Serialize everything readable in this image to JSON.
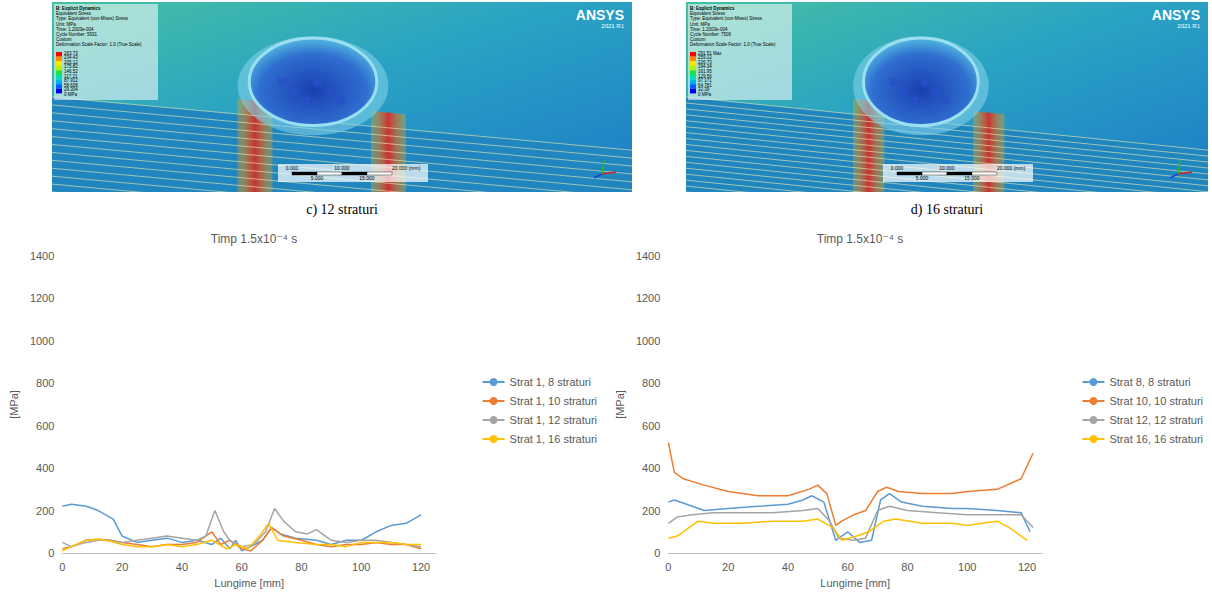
{
  "figure": {
    "panels": [
      {
        "caption": "c) 12 straturi",
        "logo": "ANSYS",
        "version": "2021 R1",
        "legend_lines": [
          "B: Explicit Dynamics",
          "Equivalent Stress",
          "Type: Equivalent (von-Mises) Stress",
          "Unit: MPa",
          "Time: 1.2003e-004",
          "Cycle Number: 5931",
          "Custom",
          "Deformation Scale Factor: 1.0 (True Scale)"
        ],
        "legend_values": [
          "263.73",
          "234.43",
          "205.12",
          "175.82",
          "146.52",
          "117.21",
          "87.912",
          "58.608",
          "29.304",
          "0 MPa"
        ],
        "scale_bar": [
          "0.000",
          "5.000",
          "10.000",
          "15.000",
          "20.000 (mm)"
        ]
      },
      {
        "caption": "d) 16 straturi",
        "logo": "ANSYS",
        "version": "2021 R1",
        "legend_lines": [
          "B: Explicit Dynamics",
          "Equivalent Stress",
          "Type: Equivalent (von-Mises) Stress",
          "Unit: MPa",
          "Time: 1.2003e-004",
          "Cycle Number: 7506",
          "Custom",
          "Deformation Scale Factor: 1.0 (True Scale)"
        ],
        "legend_values": [
          "291.51 Max",
          "259.12",
          "226.73",
          "194.34",
          "161.95",
          "129.56",
          "97.171",
          "64.781",
          "32.39",
          "0 MPa"
        ],
        "scale_bar": [
          "0.000",
          "5.000",
          "10.000",
          "15.000",
          "20.000 (mm)"
        ]
      }
    ]
  },
  "chart_data": [
    {
      "type": "line",
      "title": "Timp 1.5x10⁻⁴ s",
      "x_label": "Lungime [mm]",
      "y_label": "[MPa]",
      "xlim": [
        0,
        125
      ],
      "xticks": [
        0,
        20,
        40,
        60,
        80,
        100,
        120
      ],
      "ylim": [
        0,
        1400
      ],
      "yticks": [
        0,
        200,
        400,
        600,
        800,
        1000,
        1200,
        1400
      ],
      "grid": false,
      "legend": "right",
      "series": [
        {
          "name": "Strat 1, 8 straturi",
          "color": "#5b9bd5",
          "x": [
            0,
            3,
            8,
            12,
            17,
            20,
            25,
            30,
            35,
            40,
            45,
            50,
            53,
            56,
            58,
            60,
            63,
            67,
            70,
            73,
            78,
            85,
            90,
            95,
            100,
            105,
            110,
            115,
            120
          ],
          "values": [
            220,
            230,
            220,
            200,
            160,
            80,
            50,
            60,
            70,
            50,
            60,
            40,
            70,
            20,
            60,
            10,
            30,
            60,
            120,
            90,
            70,
            60,
            40,
            60,
            60,
            100,
            130,
            140,
            180
          ]
        },
        {
          "name": "Strat 1, 10 straturi",
          "color": "#ed7d31",
          "x": [
            0,
            3,
            8,
            12,
            16,
            20,
            25,
            30,
            35,
            40,
            45,
            50,
            53,
            56,
            60,
            63,
            67,
            70,
            74,
            80,
            85,
            90,
            95,
            100,
            105,
            110,
            115,
            120
          ],
          "values": [
            20,
            30,
            60,
            65,
            60,
            50,
            40,
            30,
            40,
            40,
            50,
            100,
            40,
            60,
            20,
            10,
            60,
            120,
            80,
            60,
            40,
            30,
            40,
            40,
            50,
            40,
            40,
            20
          ]
        },
        {
          "name": "Strat 1, 12 straturi",
          "color": "#a5a5a5",
          "x": [
            0,
            3,
            8,
            12,
            16,
            20,
            25,
            30,
            35,
            40,
            45,
            48,
            51,
            54,
            56,
            60,
            64,
            68,
            71,
            74,
            78,
            82,
            85,
            90,
            95,
            100,
            105,
            110,
            115,
            120
          ],
          "values": [
            50,
            30,
            50,
            60,
            60,
            50,
            60,
            70,
            80,
            70,
            60,
            80,
            200,
            100,
            60,
            30,
            40,
            100,
            210,
            150,
            100,
            90,
            110,
            60,
            50,
            60,
            60,
            50,
            40,
            30
          ]
        },
        {
          "name": "Strat 1, 16 straturi",
          "color": "#ffc000",
          "x": [
            0,
            3,
            8,
            12,
            16,
            20,
            25,
            30,
            35,
            40,
            45,
            50,
            55,
            58,
            62,
            66,
            69,
            72,
            78,
            85,
            90,
            95,
            100,
            105,
            110,
            115,
            120
          ],
          "values": [
            10,
            30,
            60,
            65,
            55,
            40,
            30,
            30,
            40,
            30,
            40,
            60,
            20,
            40,
            20,
            80,
            140,
            60,
            50,
            40,
            40,
            30,
            50,
            50,
            50,
            40,
            40
          ]
        }
      ]
    },
    {
      "type": "line",
      "title": "Timp 1.5x10⁻⁴ s",
      "x_label": "Lungime [mm]",
      "y_label": "[MPa]",
      "xlim": [
        0,
        125
      ],
      "xticks": [
        0,
        20,
        40,
        60,
        80,
        100,
        120
      ],
      "ylim": [
        0,
        1400
      ],
      "yticks": [
        0,
        200,
        400,
        600,
        800,
        1000,
        1200,
        1400
      ],
      "grid": false,
      "legend": "right",
      "series": [
        {
          "name": "Strat 8, 8 straturi",
          "color": "#5b9bd5",
          "x": [
            0,
            2,
            8,
            12,
            20,
            30,
            40,
            45,
            48,
            52,
            56,
            60,
            64,
            68,
            71,
            74,
            78,
            85,
            95,
            100,
            110,
            118,
            121
          ],
          "values": [
            240,
            250,
            220,
            200,
            210,
            220,
            230,
            250,
            270,
            240,
            60,
            100,
            50,
            60,
            250,
            280,
            240,
            220,
            210,
            210,
            200,
            190,
            100
          ]
        },
        {
          "name": "Strat 10, 10 straturi",
          "color": "#ed7d31",
          "x": [
            0,
            2,
            5,
            12,
            20,
            30,
            40,
            47,
            50,
            53,
            56,
            58,
            62,
            66,
            70,
            73,
            77,
            85,
            95,
            100,
            110,
            118,
            122
          ],
          "values": [
            520,
            380,
            350,
            320,
            290,
            270,
            270,
            300,
            320,
            280,
            130,
            150,
            180,
            200,
            290,
            310,
            290,
            280,
            280,
            290,
            300,
            350,
            470
          ]
        },
        {
          "name": "Strat 12, 12 straturi",
          "color": "#a5a5a5",
          "x": [
            0,
            3,
            8,
            15,
            25,
            35,
            45,
            50,
            54,
            57,
            62,
            66,
            70,
            74,
            80,
            90,
            100,
            110,
            118,
            122
          ],
          "values": [
            140,
            170,
            180,
            190,
            190,
            190,
            200,
            210,
            150,
            70,
            60,
            70,
            200,
            220,
            200,
            190,
            180,
            180,
            180,
            120
          ]
        },
        {
          "name": "Strat 16, 16 straturi",
          "color": "#ffc000",
          "x": [
            0,
            3,
            6,
            10,
            15,
            25,
            35,
            45,
            50,
            55,
            58,
            63,
            67,
            72,
            76,
            85,
            95,
            100,
            105,
            110,
            114,
            118,
            120
          ],
          "values": [
            70,
            80,
            110,
            150,
            140,
            140,
            150,
            150,
            160,
            120,
            60,
            80,
            100,
            150,
            160,
            140,
            140,
            130,
            140,
            150,
            120,
            80,
            60
          ]
        }
      ]
    }
  ]
}
